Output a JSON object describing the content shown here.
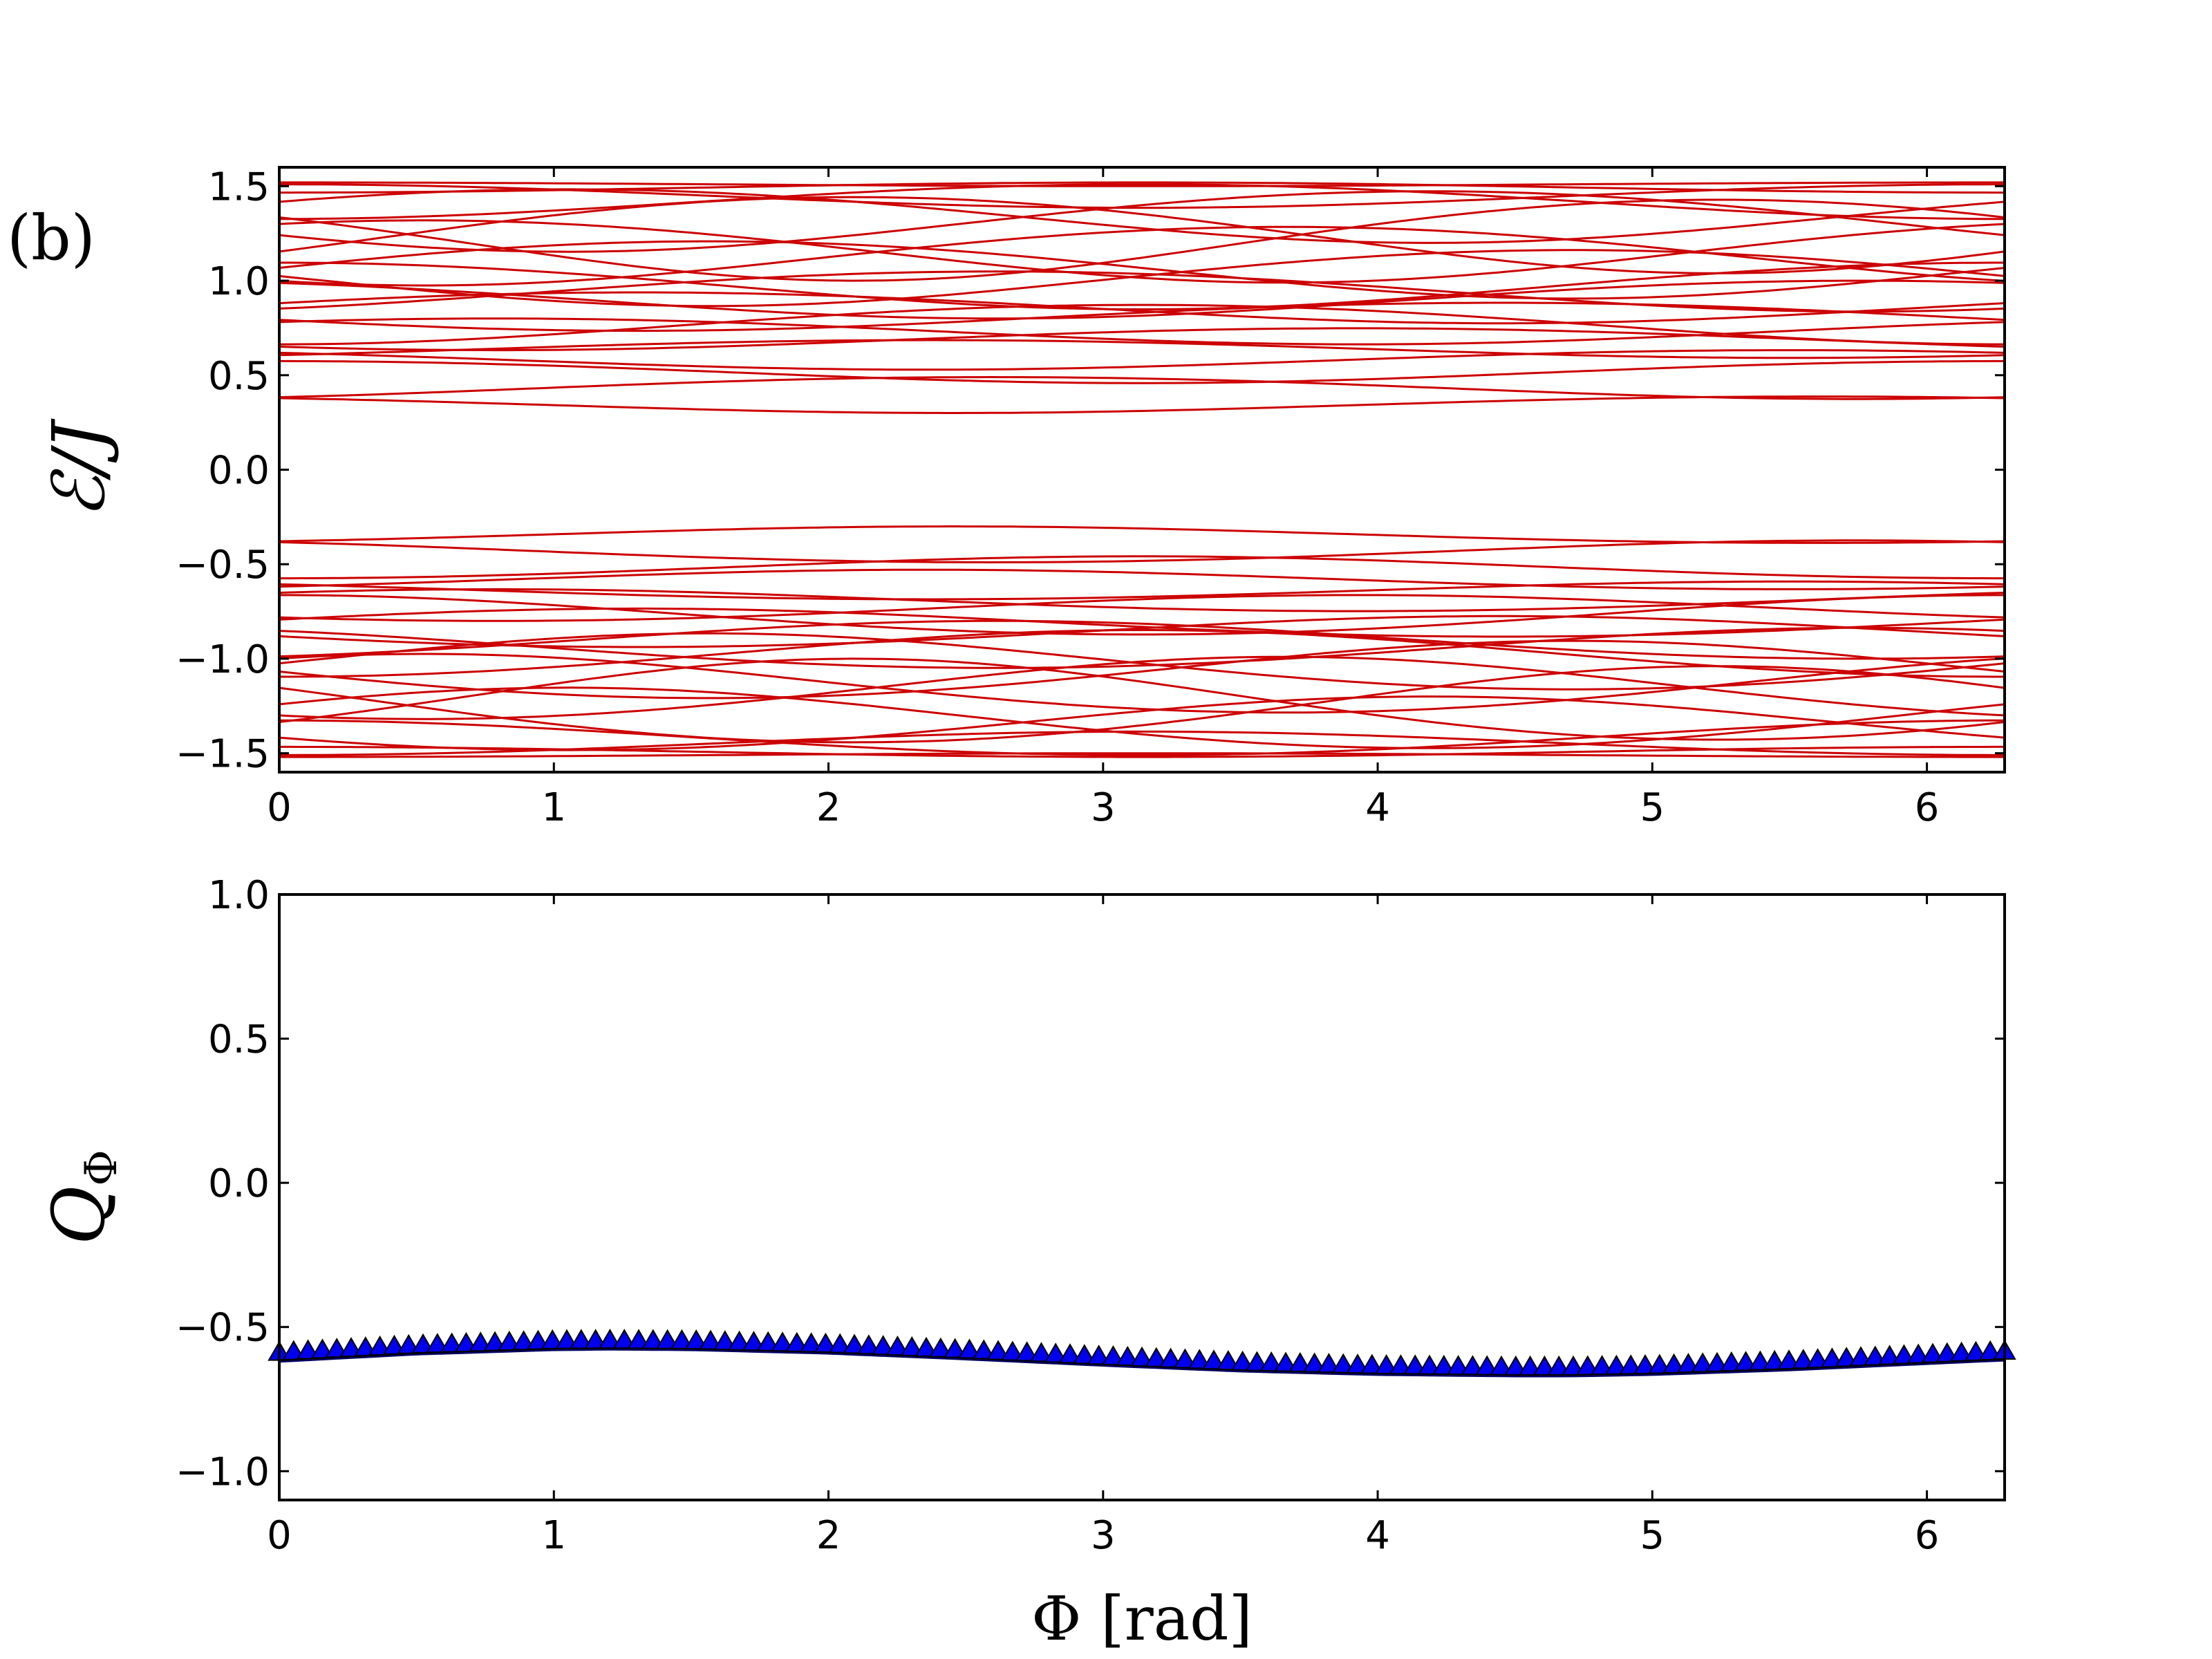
{
  "figure": {
    "panel_label": "(b)"
  },
  "chart_data": [
    {
      "type": "line",
      "title": "",
      "xlabel": "",
      "ylabel": "ℰ/J",
      "xlim": [
        0,
        6.283
      ],
      "ylim": [
        -1.6,
        1.6
      ],
      "xticks": [
        0,
        1,
        2,
        3,
        4,
        5,
        6
      ],
      "xtick_labels": [
        "0",
        "1",
        "2",
        "3",
        "4",
        "5",
        "6"
      ],
      "yticks": [
        1.5,
        1.0,
        0.5,
        0.0,
        -0.5,
        -1.0,
        -1.5
      ],
      "ytick_labels": [
        "1.5",
        "1.0",
        "0.5",
        "0.0",
        "−0.5",
        "−1.0",
        "−1.5"
      ],
      "grid": false,
      "legend": "none",
      "color": "#cc0000",
      "band_model": {
        "description": "Symmetric energy bands vs flux; each level E(x) = sign * sqrt(A + B*cos(x - phase))",
        "levels": [
          {
            "A": 2.28,
            "B": 0.03,
            "phase": 0.0
          },
          {
            "A": 2.23,
            "B": 0.08,
            "phase": 3.14
          },
          {
            "A": 2.1,
            "B": 0.18,
            "phase": 0.0
          },
          {
            "A": 2.02,
            "B": 0.26,
            "phase": 3.14
          },
          {
            "A": 1.82,
            "B": 0.38,
            "phase": 1.05
          },
          {
            "A": 1.75,
            "B": 0.42,
            "phase": 4.19
          },
          {
            "A": 1.58,
            "B": 0.5,
            "phase": 2.09
          },
          {
            "A": 1.52,
            "B": 0.52,
            "phase": 5.24
          },
          {
            "A": 1.36,
            "B": 0.38,
            "phase": 0.52
          },
          {
            "A": 1.3,
            "B": 0.35,
            "phase": 3.67
          },
          {
            "A": 1.14,
            "B": 0.32,
            "phase": 1.57
          },
          {
            "A": 1.05,
            "B": 0.3,
            "phase": 4.71
          },
          {
            "A": 0.96,
            "B": 0.24,
            "phase": 0.0
          },
          {
            "A": 0.9,
            "B": 0.2,
            "phase": 2.62
          },
          {
            "A": 0.82,
            "B": 0.18,
            "phase": 5.76
          },
          {
            "A": 0.74,
            "B": 0.14,
            "phase": 1.31
          },
          {
            "A": 0.66,
            "B": 0.12,
            "phase": 4.45
          },
          {
            "A": 0.6,
            "B": 0.16,
            "phase": 3.14
          },
          {
            "A": 0.54,
            "B": 0.1,
            "phase": 0.79
          },
          {
            "A": 0.48,
            "B": 0.08,
            "phase": 3.93
          },
          {
            "A": 0.41,
            "B": 0.06,
            "phase": 2.36
          },
          {
            "A": 0.34,
            "B": 0.06,
            "phase": 5.5
          },
          {
            "A": 0.27,
            "B": 0.06,
            "phase": 0.0
          },
          {
            "A": 0.19,
            "B": 0.05,
            "phase": 2.6
          },
          {
            "A": 0.12,
            "B": 0.03,
            "phase": 5.6
          }
        ]
      }
    },
    {
      "type": "scatter",
      "title": "",
      "xlabel": "Φ [rad]",
      "ylabel": "Q_Φ",
      "xlim": [
        0,
        6.283
      ],
      "ylim": [
        -1.1,
        1.0
      ],
      "xticks": [
        0,
        1,
        2,
        3,
        4,
        5,
        6
      ],
      "xtick_labels": [
        "0",
        "1",
        "2",
        "3",
        "4",
        "5",
        "6"
      ],
      "yticks": [
        1.0,
        0.5,
        0.0,
        -0.5,
        -1.0
      ],
      "ytick_labels": [
        "1.0",
        "0.5",
        "0.0",
        "−0.5",
        "−1.0"
      ],
      "grid": false,
      "legend": "none",
      "marker": "triangle-up",
      "color": "#0000ee",
      "series": [
        {
          "x": [
            0.0,
            0.5,
            1.0,
            1.2,
            1.5,
            2.0,
            2.5,
            3.0,
            3.5,
            4.0,
            4.5,
            4.7,
            5.0,
            5.5,
            6.0,
            6.283
          ],
          "y": [
            -0.59,
            -0.565,
            -0.55,
            -0.548,
            -0.55,
            -0.562,
            -0.582,
            -0.604,
            -0.624,
            -0.636,
            -0.641,
            -0.641,
            -0.636,
            -0.62,
            -0.598,
            -0.586
          ]
        }
      ]
    }
  ]
}
